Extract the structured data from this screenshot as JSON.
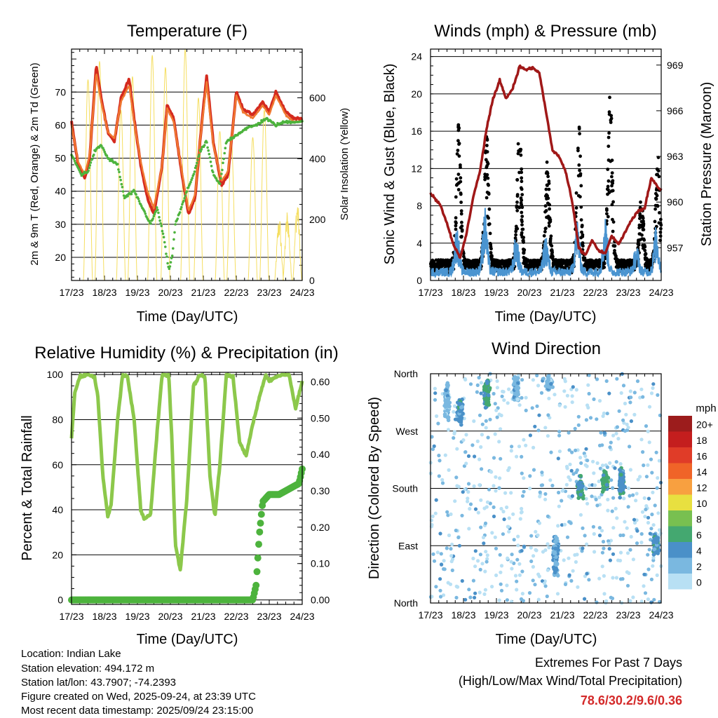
{
  "colors": {
    "t2m": "#d42a1e",
    "t9m": "#f07830",
    "td": "#4db33d",
    "solar": "#f5de60",
    "wind": "#4a94d0",
    "gust": "#000000",
    "pressure": "#a01818",
    "rh": "#8cc84b",
    "precip": "#4db33d",
    "extremes": "#d42a2a"
  },
  "footer": {
    "location": "Location: Indian Lake",
    "elevation": "Station elevation: 494.172 m",
    "latlon": "Station lat/lon: 43.7907; -74.2393",
    "created": "Figure created on Wed, 2025-09-24, at 23:39 UTC",
    "recent": "Most recent data timestamp: 2025/09/24 23:15:00",
    "extremes_title": "Extremes For Past 7 Days",
    "extremes_sub": "(High/Low/Max Wind/Total Precipitation)",
    "extremes_values": "78.6/30.2/9.6/0.36"
  },
  "chart_data": [
    {
      "id": "temperature",
      "type": "line",
      "title": "Temperature (F)",
      "xlabel": "Time (Day/UTC)",
      "ylabel": "2m & 9m T (Red, Orange) & 2m Td (Green)",
      "ylabel_right": "Solar Insolation (Yellow)",
      "x_ticks": [
        "17/23",
        "18/23",
        "19/23",
        "20/23",
        "21/23",
        "22/23",
        "23/23",
        "24/23"
      ],
      "xlim": [
        0,
        7
      ],
      "ylim": [
        13,
        83
      ],
      "y_ticks": [
        20,
        30,
        40,
        50,
        60,
        70
      ],
      "y2lim": [
        0,
        760
      ],
      "y2_ticks": [
        0,
        200,
        400,
        600
      ],
      "series": [
        {
          "name": "2m T",
          "x": [
            0,
            0.2,
            0.4,
            0.55,
            0.75,
            0.9,
            1.1,
            1.3,
            1.5,
            1.75,
            1.9,
            2.1,
            2.3,
            2.5,
            2.75,
            2.9,
            3.1,
            3.35,
            3.55,
            3.75,
            3.9,
            4.1,
            4.3,
            4.55,
            4.75,
            5.0,
            5.2,
            5.5,
            5.8,
            6.0,
            6.2,
            6.5,
            6.75,
            7.0
          ],
          "values": [
            61,
            48,
            44,
            50,
            78,
            68,
            58,
            55,
            68,
            74,
            62,
            48,
            38,
            33,
            48,
            66,
            62,
            45,
            33,
            38,
            55,
            75,
            55,
            42,
            45,
            70,
            65,
            63,
            67,
            64,
            70,
            64,
            62,
            62
          ]
        },
        {
          "name": "9m T",
          "x": [
            0,
            0.2,
            0.4,
            0.55,
            0.75,
            0.9,
            1.1,
            1.3,
            1.5,
            1.75,
            1.9,
            2.1,
            2.3,
            2.5,
            2.75,
            2.9,
            3.1,
            3.35,
            3.55,
            3.75,
            3.9,
            4.1,
            4.3,
            4.55,
            4.75,
            5.0,
            5.2,
            5.5,
            5.8,
            6.0,
            6.2,
            6.5,
            6.75,
            7.0
          ],
          "values": [
            60,
            49,
            45,
            51,
            76,
            67,
            58,
            56,
            67,
            72,
            61,
            49,
            40,
            35,
            48,
            65,
            61,
            46,
            34,
            39,
            55,
            73,
            54,
            43,
            46,
            69,
            64,
            62,
            66,
            63,
            69,
            63,
            61,
            61
          ]
        },
        {
          "name": "2m Td",
          "x": [
            0,
            0.3,
            0.5,
            0.7,
            0.9,
            1.1,
            1.4,
            1.6,
            1.75,
            1.9,
            2.1,
            2.4,
            2.6,
            2.8,
            2.95,
            3.05,
            3.15,
            3.3,
            3.5,
            3.7,
            3.9,
            4.1,
            4.3,
            4.5,
            4.7,
            5.0,
            5.3,
            5.6,
            5.9,
            6.2,
            6.5,
            6.8,
            7.0
          ],
          "values": [
            51,
            45,
            46,
            52,
            54,
            50,
            48,
            38,
            39,
            40,
            36,
            30,
            35,
            26,
            16,
            20,
            30,
            34,
            40,
            45,
            52,
            55,
            45,
            42,
            55,
            57,
            59,
            60,
            62,
            60,
            61,
            61,
            61
          ]
        },
        {
          "name": "Solar Insolation",
          "axis": "right",
          "peaks": [
            [
              0.5,
              660
            ],
            [
              0.85,
              720
            ],
            [
              1.5,
              560
            ],
            [
              1.85,
              670
            ],
            [
              2.45,
              740
            ],
            [
              2.85,
              700
            ],
            [
              3.45,
              760
            ],
            [
              3.85,
              600
            ],
            [
              4.5,
              490
            ],
            [
              4.85,
              460
            ],
            [
              5.5,
              470
            ],
            [
              5.85,
              560
            ],
            [
              6.3,
              220
            ],
            [
              6.55,
              240
            ],
            [
              6.85,
              280
            ]
          ]
        }
      ]
    },
    {
      "id": "winds",
      "type": "scatter",
      "title": "Winds (mph) & Pressure (mb)",
      "xlabel": "Time (Day/UTC)",
      "ylabel": "Sonic Wind & Gust (Blue, Black)",
      "ylabel_right": "Station Pressure (Maroon)",
      "x_ticks": [
        "17/23",
        "18/23",
        "19/23",
        "20/23",
        "21/23",
        "22/23",
        "23/23",
        "24/23"
      ],
      "xlim": [
        0,
        7
      ],
      "ylim": [
        0,
        24.8
      ],
      "y_ticks": [
        0,
        4,
        8,
        12,
        16,
        20,
        24
      ],
      "y2lim": [
        954.85,
        970.05
      ],
      "y2_ticks": [
        957,
        960,
        963,
        966,
        969
      ],
      "series": [
        {
          "name": "Pressure",
          "axis": "right",
          "x": [
            0,
            0.3,
            0.5,
            0.7,
            0.9,
            1.1,
            1.3,
            1.5,
            1.7,
            1.9,
            2.1,
            2.3,
            2.5,
            2.7,
            2.9,
            3.1,
            3.3,
            3.5,
            3.7,
            3.9,
            4.1,
            4.3,
            4.5,
            4.7,
            4.9,
            5.1,
            5.3,
            5.5,
            5.7,
            5.9,
            6.1,
            6.3,
            6.5,
            6.7,
            6.9,
            7.0
          ],
          "values": [
            960.6,
            959.8,
            958.6,
            957.2,
            956.3,
            958.0,
            960.4,
            962.0,
            964.8,
            966.8,
            968.0,
            966.8,
            967.5,
            968.9,
            968.7,
            968.8,
            968.5,
            966.0,
            963.4,
            963.0,
            962.0,
            960.0,
            957.0,
            956.5,
            957.5,
            956.8,
            956.6,
            957.8,
            957.2,
            958.0,
            958.8,
            959.4,
            959.6,
            961.6,
            961.0,
            960.8
          ]
        },
        {
          "name": "Wind daily peaks",
          "x": [
            0.8,
            1.65,
            2.6,
            3.5,
            4.45,
            5.3,
            6.25,
            6.85
          ],
          "values": [
            6,
            8,
            5,
            5,
            7,
            7,
            4,
            6
          ]
        },
        {
          "name": "Gust daily peaks",
          "x": [
            0.85,
            1.7,
            2.7,
            3.55,
            4.5,
            5.45,
            6.4,
            6.9
          ],
          "values": [
            17,
            16,
            18,
            13,
            17,
            22.5,
            9,
            14
          ]
        }
      ]
    },
    {
      "id": "humidity",
      "type": "line",
      "title": "Relative Humidity (%) & Precipitation (in)",
      "xlabel": "Time (Day/UTC)",
      "ylabel": "Percent & Total Rainfall",
      "x_ticks": [
        "17/23",
        "18/23",
        "19/23",
        "20/23",
        "21/23",
        "22/23",
        "23/23",
        "24/23"
      ],
      "xlim": [
        0,
        7
      ],
      "ylim": [
        -2,
        101
      ],
      "y_ticks": [
        0,
        20,
        40,
        60,
        80,
        100
      ],
      "y2lim": [
        -0.0124,
        0.626
      ],
      "y2_ticks": [
        "0.00",
        "0.10",
        "0.20",
        "0.30",
        "0.40",
        "0.50",
        "0.60"
      ],
      "series": [
        {
          "name": "Relative Humidity",
          "x": [
            0,
            0.1,
            0.25,
            0.5,
            0.7,
            0.8,
            0.95,
            1.1,
            1.2,
            1.4,
            1.55,
            1.7,
            1.9,
            2.1,
            2.2,
            2.4,
            2.6,
            2.75,
            2.95,
            3.05,
            3.15,
            3.3,
            3.5,
            3.7,
            3.9,
            4.05,
            4.2,
            4.35,
            4.5,
            4.7,
            4.9,
            5.1,
            5.3,
            5.5,
            5.7,
            5.9,
            6.0,
            6.2,
            6.4,
            6.6,
            6.8,
            7.0
          ],
          "values": [
            72,
            92,
            99,
            100,
            99,
            90,
            55,
            37,
            42,
            80,
            100,
            99,
            80,
            40,
            36,
            38,
            75,
            100,
            100,
            70,
            25,
            13,
            45,
            95,
            100,
            99,
            55,
            37,
            60,
            100,
            99,
            70,
            64,
            78,
            90,
            100,
            97,
            99,
            100,
            100,
            85,
            97
          ]
        },
        {
          "name": "Total Precipitation",
          "axis": "right",
          "x": [
            0,
            5.5,
            5.6,
            5.7,
            5.8,
            6.0,
            6.3,
            6.5,
            6.7,
            6.9,
            7.0
          ],
          "values": [
            0,
            0,
            0.04,
            0.18,
            0.27,
            0.29,
            0.29,
            0.3,
            0.31,
            0.32,
            0.36
          ]
        }
      ]
    },
    {
      "id": "wind_direction",
      "type": "scatter",
      "title": "Wind Direction",
      "xlabel": "Time (Day/UTC)",
      "ylabel": "Direction (Colored By Speed)",
      "x_ticks": [
        "17/23",
        "18/23",
        "19/23",
        "20/23",
        "21/23",
        "22/23",
        "23/23",
        "24/23"
      ],
      "xlim": [
        0,
        7
      ],
      "y_labels": [
        "North",
        "West",
        "South",
        "East",
        "North"
      ],
      "ylim": [
        0,
        360
      ],
      "legend_title": "mph",
      "legend_labels": [
        "20+",
        "18",
        "16",
        "14",
        "12",
        "10",
        "8",
        "6",
        "4",
        "2",
        "0"
      ],
      "legend_colors": [
        "#9c1c1c",
        "#c41e1e",
        "#e03c28",
        "#f06428",
        "#f8a040",
        "#e8e040",
        "#78c050",
        "#44a870",
        "#4a90c8",
        "#7ab8e0",
        "#b8e0f4"
      ],
      "clusters": [
        {
          "x": 0.5,
          "dir": 315,
          "spread": 40,
          "speed": 2
        },
        {
          "x": 0.9,
          "dir": 300,
          "spread": 25,
          "speed": 4
        },
        {
          "x": 1.7,
          "dir": 330,
          "spread": 30,
          "speed": 5
        },
        {
          "x": 2.6,
          "dir": 335,
          "spread": 25,
          "speed": 2
        },
        {
          "x": 3.6,
          "dir": 345,
          "spread": 15,
          "speed": 2
        },
        {
          "x": 3.8,
          "dir": 75,
          "spread": 45,
          "speed": 3
        },
        {
          "x": 4.55,
          "dir": 180,
          "spread": 25,
          "speed": 5
        },
        {
          "x": 5.3,
          "dir": 190,
          "spread": 20,
          "speed": 6
        },
        {
          "x": 5.8,
          "dir": 190,
          "spread": 30,
          "speed": 4
        },
        {
          "x": 6.85,
          "dir": 92,
          "spread": 20,
          "speed": 4
        }
      ]
    }
  ]
}
